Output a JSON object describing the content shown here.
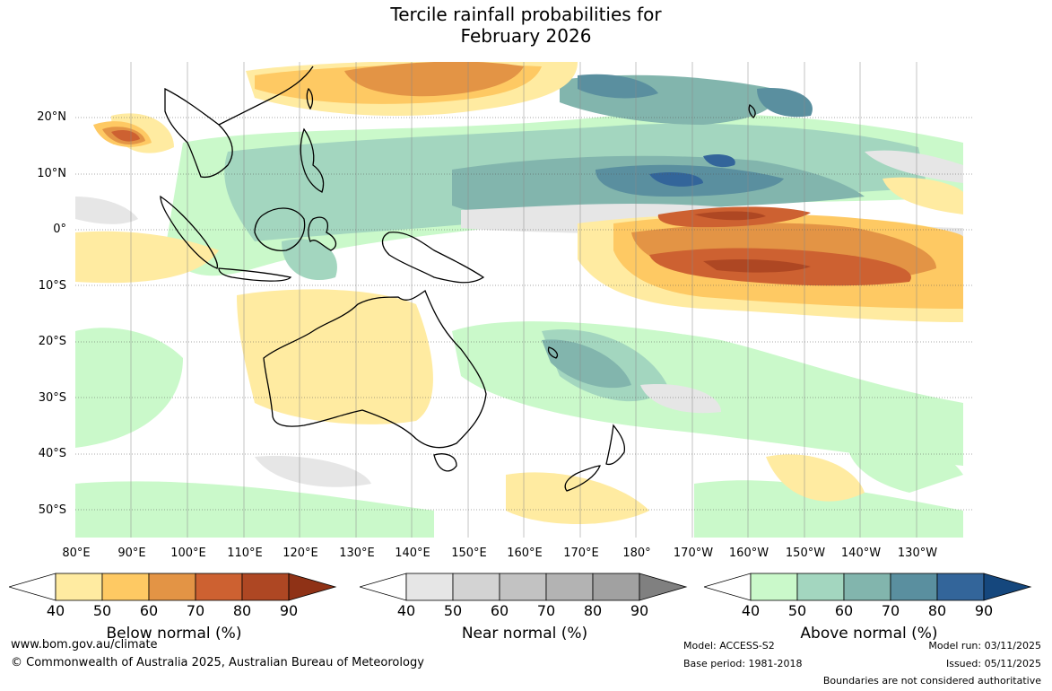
{
  "title_line1": "Tercile rainfall probabilities for",
  "title_line2": "February 2026",
  "lat_labels": [
    "20°N",
    "10°N",
    "0°",
    "10°S",
    "20°S",
    "30°S",
    "40°S",
    "50°S"
  ],
  "lon_labels": [
    "80°E",
    "90°E",
    "100°E",
    "110°E",
    "120°E",
    "130°E",
    "140°E",
    "150°E",
    "160°E",
    "170°E",
    "180°",
    "170°W",
    "160°W",
    "150°W",
    "140°W",
    "130°W"
  ],
  "colorbars": [
    {
      "label": "Below normal (%)",
      "ticks": [
        "40",
        "50",
        "60",
        "70",
        "80",
        "90"
      ],
      "colors": [
        "#ffeba1",
        "#fec963",
        "#e39445",
        "#cd6131",
        "#ae4723",
        "#8f3216"
      ]
    },
    {
      "label": "Near normal (%)",
      "ticks": [
        "40",
        "50",
        "60",
        "70",
        "80",
        "90"
      ],
      "colors": [
        "#e6e6e6",
        "#d3d3d3",
        "#c2c2c2",
        "#b3b3b3",
        "#a1a1a1",
        "#808080"
      ]
    },
    {
      "label": "Above normal (%)",
      "ticks": [
        "40",
        "50",
        "60",
        "70",
        "80",
        "90"
      ],
      "colors": [
        "#caf9ca",
        "#a3d6bf",
        "#82b5ad",
        "#5a8f9f",
        "#33659a",
        "#15477d"
      ]
    }
  ],
  "footer": {
    "website": "www.bom.gov.au/climate",
    "copyright": "© Commonwealth of Australia 2025, Australian Bureau of Meteorology",
    "model": "Model: ACCESS-S2",
    "base_period": "Base period: 1981-2018",
    "model_run": "Model run: 03/11/2025",
    "issued": "Issued: 05/11/2025",
    "disclaimer": "Boundaries are not considered authoritative"
  }
}
